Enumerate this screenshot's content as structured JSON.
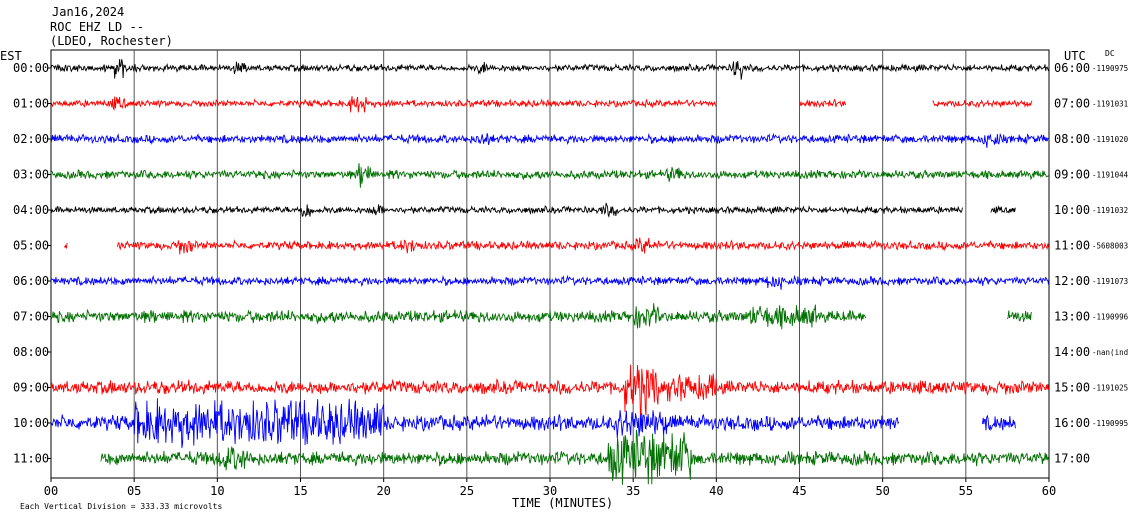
{
  "header": {
    "date": "Jan16,2024",
    "station": "ROC EHZ LD --",
    "network": "(LDEO, Rochester)"
  },
  "labels": {
    "left_zone": "EST",
    "right_zone": "UTC",
    "dc": "DC",
    "xlabel": "TIME (MINUTES)",
    "scale_note": "Each Vertical Division =  333.33 microvolts"
  },
  "colors": {
    "black": "#000000",
    "red": "#ff0000",
    "blue": "#0000ff",
    "green": "#007000",
    "grid": "#000000"
  },
  "chart_data": {
    "type": "line",
    "title": "",
    "xlabel": "TIME (MINUTES)",
    "ylabel": "",
    "xlim": [
      0,
      60
    ],
    "xticks": [
      "00",
      "05",
      "10",
      "15",
      "20",
      "25",
      "30",
      "35",
      "40",
      "45",
      "50",
      "55",
      "60"
    ],
    "grid": true,
    "rows": [
      {
        "est": "00:00",
        "utc": "06:00",
        "dc": "-1190975",
        "color": "black",
        "amp": 4,
        "segments": [
          [
            0,
            60
          ]
        ],
        "bursts": [
          [
            3.8,
            4.4,
            3
          ],
          [
            11,
            11.8,
            2
          ],
          [
            25.6,
            26.4,
            2
          ],
          [
            41,
            41.6,
            4
          ]
        ]
      },
      {
        "est": "01:00",
        "utc": "07:00",
        "dc": "-1191031",
        "color": "red",
        "amp": 4,
        "segments": [
          [
            0,
            40
          ],
          [
            45,
            47.8
          ],
          [
            53,
            59
          ]
        ],
        "bursts": [
          [
            3.5,
            4.5,
            2
          ],
          [
            18,
            19,
            3
          ]
        ]
      },
      {
        "est": "02:00",
        "utc": "08:00",
        "dc": "-1191020",
        "color": "blue",
        "amp": 5,
        "segments": [
          [
            0,
            60
          ]
        ],
        "bursts": [
          [
            25.6,
            26.4,
            2
          ],
          [
            56,
            57,
            2
          ]
        ]
      },
      {
        "est": "03:00",
        "utc": "09:00",
        "dc": "-1191044",
        "color": "green",
        "amp": 5,
        "segments": [
          [
            0,
            60
          ]
        ],
        "bursts": [
          [
            18.4,
            19.2,
            3
          ],
          [
            37,
            38,
            2
          ]
        ]
      },
      {
        "est": "04:00",
        "utc": "10:00",
        "dc": "-1191032",
        "color": "black",
        "amp": 4,
        "segments": [
          [
            0,
            54.8
          ],
          [
            56.5,
            58
          ]
        ],
        "bursts": [
          [
            15,
            15.8,
            3
          ],
          [
            19.2,
            20,
            2
          ],
          [
            33,
            34,
            2
          ]
        ]
      },
      {
        "est": "05:00",
        "utc": "11:00",
        "dc": "-5608003",
        "color": "red",
        "amp": 5,
        "segments": [
          [
            0.8,
            1
          ],
          [
            4,
            60
          ]
        ],
        "bursts": [
          [
            7.5,
            8.5,
            2
          ],
          [
            21,
            22,
            2
          ],
          [
            35,
            36,
            2
          ]
        ]
      },
      {
        "est": "06:00",
        "utc": "12:00",
        "dc": "-1191073",
        "color": "blue",
        "amp": 5,
        "segments": [
          [
            0,
            60
          ]
        ],
        "bursts": [
          [
            43,
            44,
            2
          ]
        ]
      },
      {
        "est": "07:00",
        "utc": "13:00",
        "dc": "-1190996",
        "color": "green",
        "amp": 7,
        "segments": [
          [
            0,
            49
          ],
          [
            57.5,
            59
          ]
        ],
        "bursts": [
          [
            35,
            36.5,
            2
          ],
          [
            42,
            46,
            2
          ]
        ]
      },
      {
        "est": "08:00",
        "utc": "14:00",
        "dc": "-nan(ind",
        "color": "black",
        "amp": 0,
        "segments": [],
        "bursts": []
      },
      {
        "est": "09:00",
        "utc": "15:00",
        "dc": "-1191025",
        "color": "red",
        "amp": 8,
        "segments": [
          [
            0,
            60
          ]
        ],
        "bursts": [
          [
            34.5,
            36.5,
            4
          ],
          [
            37,
            40,
            2
          ]
        ]
      },
      {
        "est": "10:00",
        "utc": "16:00",
        "dc": "-1190995",
        "color": "blue",
        "amp": 9,
        "segments": [
          [
            0,
            51
          ],
          [
            56,
            58
          ]
        ],
        "bursts": [
          [
            5,
            20,
            3
          ],
          [
            34,
            37,
            2
          ]
        ]
      },
      {
        "est": "11:00",
        "utc": "17:00",
        "dc": "",
        "color": "green",
        "amp": 8,
        "segments": [
          [
            3,
            60
          ]
        ],
        "bursts": [
          [
            10,
            12,
            2
          ],
          [
            33.5,
            38.5,
            4
          ]
        ]
      }
    ]
  }
}
